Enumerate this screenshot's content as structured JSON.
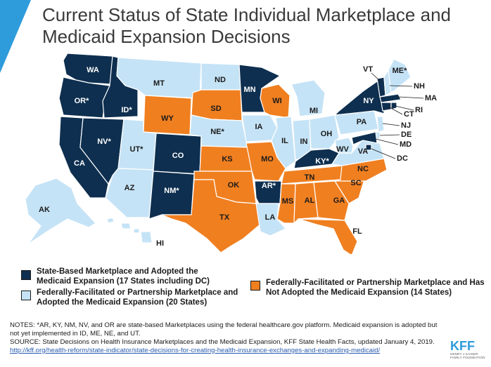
{
  "title": "Current Status of State Individual Marketplace and Medicaid Expansion Decisions",
  "colors": {
    "accent": "#2E9CDB",
    "state_based_expanded": "#0E2F4F",
    "federal_expanded": "#C5E3F6",
    "federal_not_expanded": "#F07F20"
  },
  "categories": {
    "state_based_expanded": [
      "WA",
      "OR*",
      "CA",
      "NV*",
      "ID*",
      "CO",
      "NM*",
      "MN",
      "NY",
      "VT",
      "MA",
      "RI",
      "CT",
      "MD",
      "KY*",
      "AR*",
      "DC"
    ],
    "federal_expanded": [
      "MT",
      "ND",
      "NE*",
      "UT*",
      "AZ",
      "AK",
      "HI",
      "IA",
      "IL",
      "IN",
      "MI",
      "OH",
      "PA",
      "NJ",
      "DE",
      "WV",
      "VA",
      "NH",
      "ME*",
      "LA"
    ],
    "federal_not_expanded": [
      "WY",
      "SD",
      "KS",
      "OK",
      "TX",
      "MO",
      "WI",
      "TN",
      "MS",
      "AL",
      "GA",
      "SC",
      "NC",
      "FL"
    ]
  },
  "labels": {
    "WA": "WA",
    "OR": "OR*",
    "CA": "CA",
    "NV": "NV*",
    "ID": "ID*",
    "MT": "MT",
    "WY": "WY",
    "UT": "UT*",
    "AZ": "AZ",
    "CO": "CO",
    "NM": "NM*",
    "ND": "ND",
    "SD": "SD",
    "NE": "NE*",
    "KS": "KS",
    "OK": "OK",
    "TX": "TX",
    "MN": "MN",
    "IA": "IA",
    "MO": "MO",
    "AR": "AR*",
    "LA": "LA",
    "WI": "WI",
    "IL": "IL",
    "MS": "MS",
    "MI": "MI",
    "IN": "IN",
    "KY": "KY*",
    "TN": "TN",
    "AL": "AL",
    "OH": "OH",
    "WV": "WV",
    "VA": "VA",
    "NC": "NC",
    "SC": "SC",
    "GA": "GA",
    "FL": "FL",
    "PA": "PA",
    "NY": "NY",
    "VT": "VT",
    "NH": "NH",
    "ME": "ME*",
    "MA": "MA",
    "RI": "RI",
    "CT": "CT",
    "NJ": "NJ",
    "DE": "DE",
    "MD": "MD",
    "DC": "DC",
    "AK": "AK",
    "HI": "HI"
  },
  "legend": {
    "state_based": "State-Based Marketplace and Adopted the Medicaid Expansion (17 States including DC)",
    "federal_expanded": "Federally-Facilitated or Partnership Marketplace and Adopted the Medicaid Expansion (20 States)",
    "federal_not_expanded": "Federally-Facilitated or Partnership Marketplace and Has Not Adopted the Medicaid Expansion (14 States)"
  },
  "notes": "NOTES: *AR, KY, NM, NV, and OR are state-based Marketplaces using the federal healthcare.gov platform. Medicaid expansion is adopted but not yet implemented in ID, ME, NE, and UT.",
  "source_prefix": "SOURCE: State Decisions on Health Insurance Marketplaces and the Medicaid Expansion, KFF State Health Facts, updated January 4, 2019.",
  "source_link": "http://kff.org/health-reform/state-indicator/state-decisions-for-creating-health-insurance-exchanges-and-expanding-medicaid/",
  "logo": {
    "text": "KFF",
    "subtitle": "HENRY J KAISER FAMILY FOUNDATION"
  }
}
